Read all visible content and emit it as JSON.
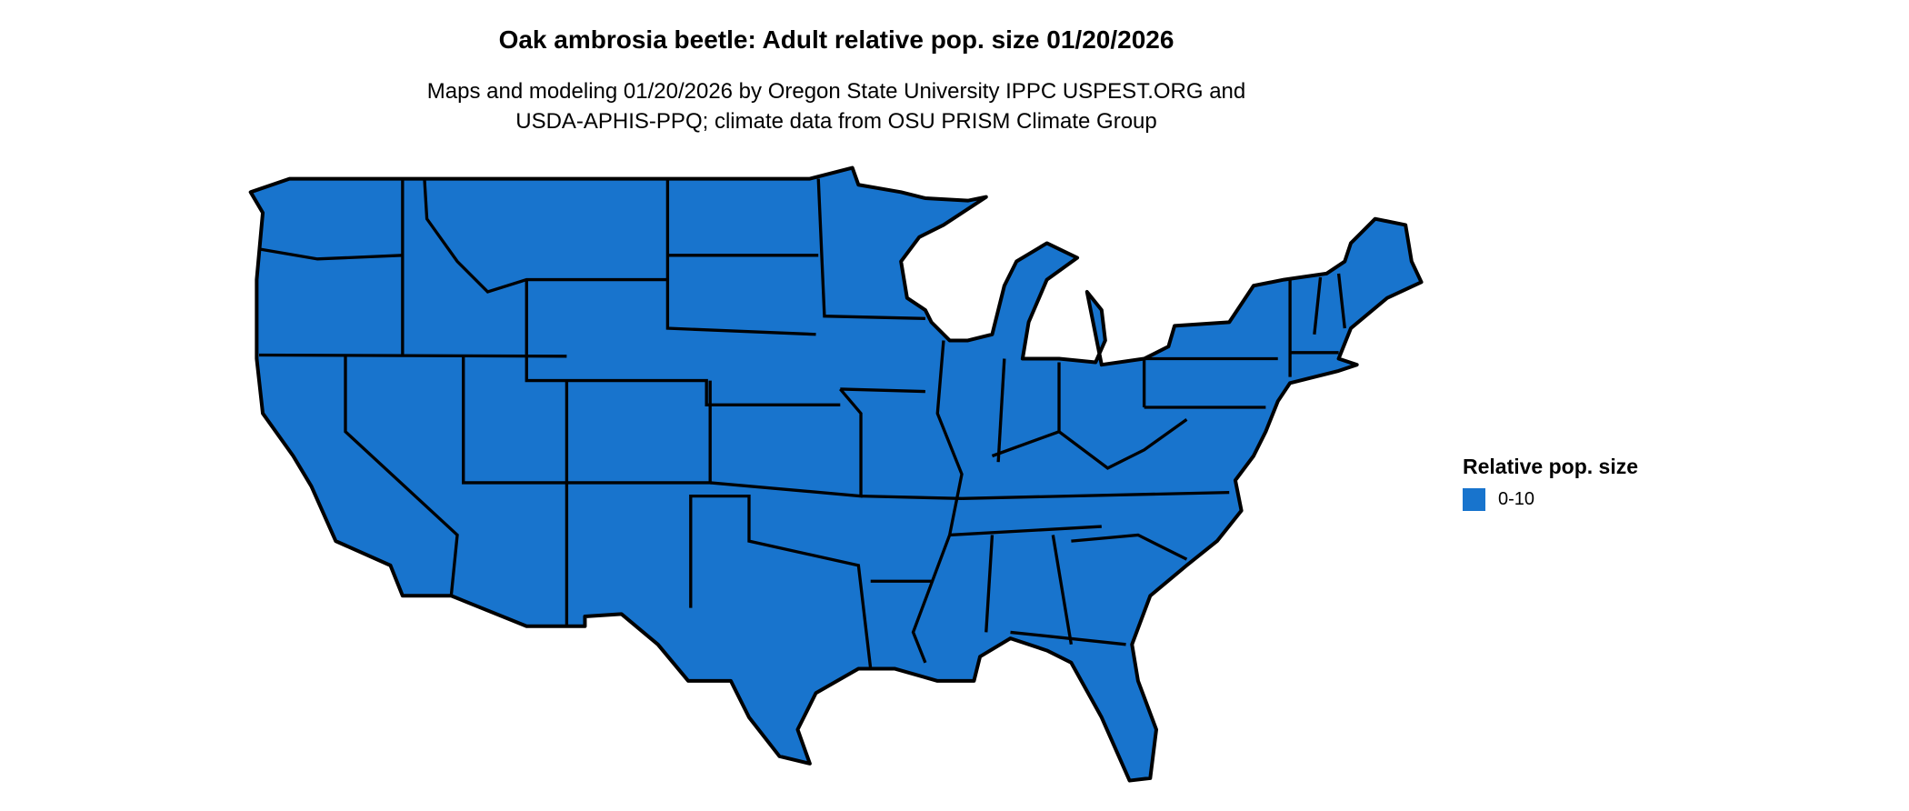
{
  "title": "Oak ambrosia beetle: Adult relative pop. size 01/20/2026",
  "subtitle_lines": [
    "Maps and modeling 01/20/2026 by Oregon State University IPPC USPEST.ORG and",
    "USDA-APHIS-PPQ; climate data from OSU PRISM Climate Group"
  ],
  "map": {
    "region": "Conterminous United States",
    "fill_color": "#1874CD",
    "border_color": "#000000"
  },
  "legend": {
    "title": "Relative pop. size",
    "items": [
      {
        "label": "0-10",
        "color": "#1874CD"
      }
    ]
  }
}
